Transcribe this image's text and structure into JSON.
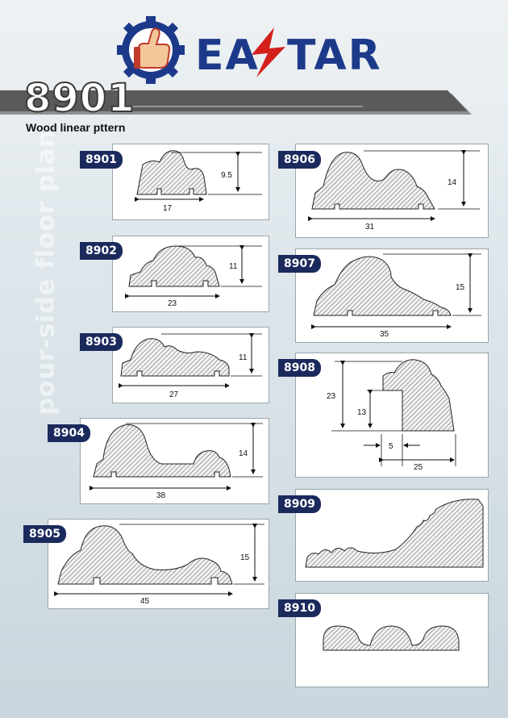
{
  "header": {
    "brand": "EASTAR",
    "code": "8901",
    "subtitle": "Wood linear pttern",
    "watermark": "pour-side floor plan"
  },
  "colors": {
    "label_bg": "#1b2a5c",
    "brand_blue": "#1d3a8a",
    "bolt_red": "#d4201c"
  },
  "items": [
    {
      "code": "8901",
      "dims": [
        "9.5",
        "17"
      ]
    },
    {
      "code": "8902",
      "dims": [
        "11",
        "23"
      ]
    },
    {
      "code": "8903",
      "dims": [
        "11",
        "27"
      ]
    },
    {
      "code": "8904",
      "dims": [
        "14",
        "38"
      ]
    },
    {
      "code": "8905",
      "dims": [
        "15",
        "45"
      ]
    },
    {
      "code": "8906",
      "dims": [
        "14",
        "31"
      ]
    },
    {
      "code": "8907",
      "dims": [
        "15",
        "35"
      ]
    },
    {
      "code": "8908",
      "dims": [
        "23",
        "13",
        "5",
        "25"
      ]
    },
    {
      "code": "8909",
      "dims": []
    },
    {
      "code": "8910",
      "dims": []
    }
  ]
}
